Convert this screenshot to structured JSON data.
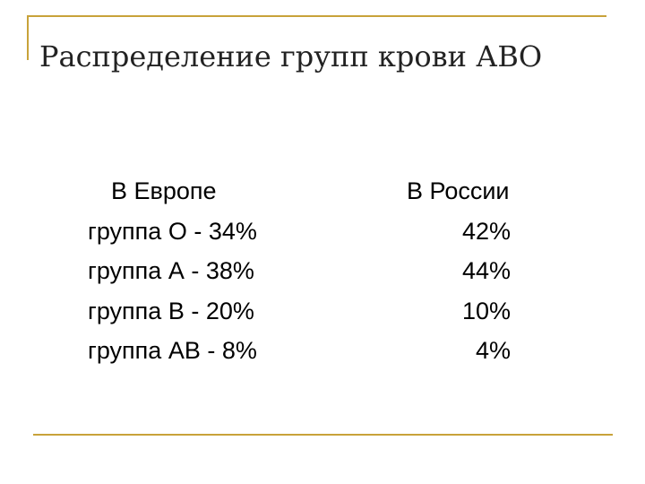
{
  "slide": {
    "title": "Распределение групп крови АВО",
    "europe": {
      "heading": "В Европе",
      "rows": [
        "группа О - 34%",
        "группа А - 38%",
        "группа В - 20%",
        "группа АВ - 8%"
      ]
    },
    "russia": {
      "heading": "В России",
      "values": [
        "42%",
        "44%",
        "10%",
        "4%"
      ]
    },
    "accent_color": "#c8a23a"
  }
}
